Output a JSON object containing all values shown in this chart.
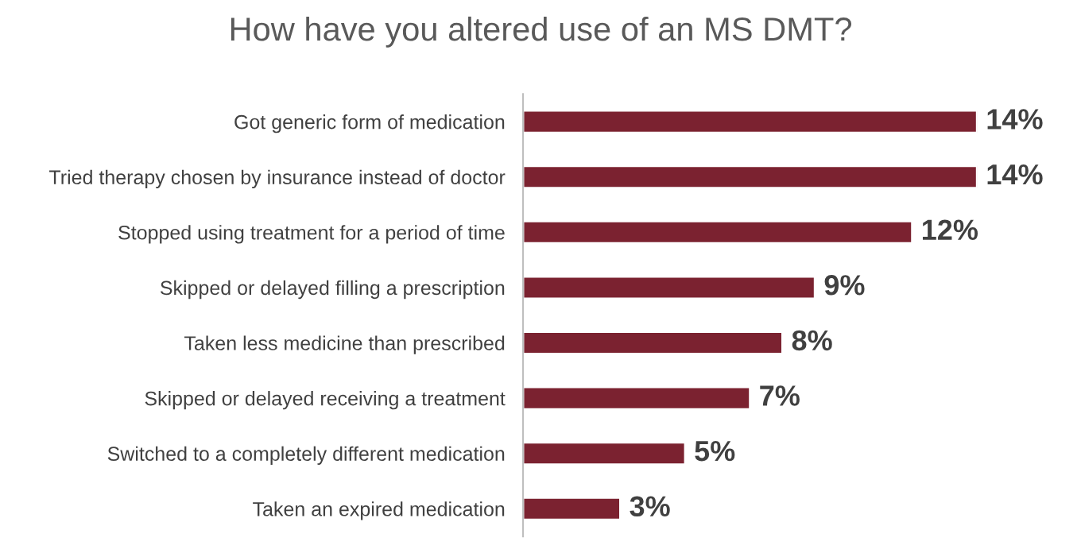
{
  "chart_data": {
    "type": "bar",
    "orientation": "horizontal",
    "title": "How have you altered use of an MS DMT?",
    "categories": [
      "Got generic form of medication",
      "Tried therapy chosen by insurance instead of doctor",
      "Stopped using treatment for a period of time",
      "Skipped or delayed filling a prescription",
      "Taken less medicine than prescribed",
      "Skipped or delayed receiving a treatment",
      "Switched to a completely different medication",
      "Taken an expired medication"
    ],
    "values": [
      14,
      14,
      12,
      9,
      8,
      7,
      5,
      3
    ],
    "value_labels": [
      "14%",
      "14%",
      "12%",
      "9%",
      "8%",
      "7%",
      "5%",
      "3%"
    ],
    "color": "#7b2230",
    "grid": false,
    "legend": false
  }
}
